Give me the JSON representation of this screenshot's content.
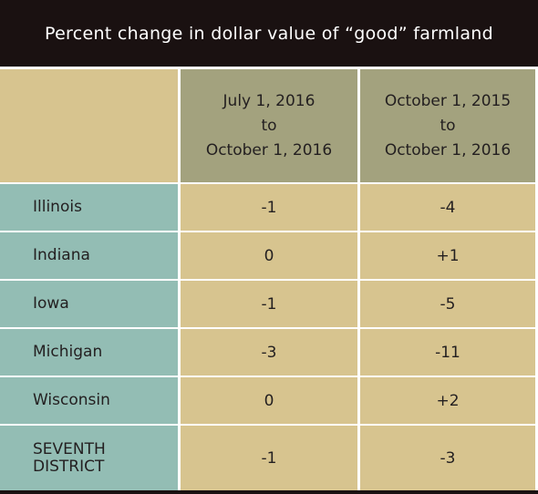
{
  "title": "Percent change in dollar value of “good” farmland",
  "columns": [
    "July 1, 2016\nto\nOctober 1, 2016",
    "October 1, 2015\nto\nOctober 1, 2016"
  ],
  "rows": [
    {
      "name": "Illinois",
      "values": [
        "-1",
        "-4"
      ]
    },
    {
      "name": "Indiana",
      "values": [
        "0",
        "+1"
      ]
    },
    {
      "name": "Iowa",
      "values": [
        "-1",
        "-5"
      ]
    },
    {
      "name": "Michigan",
      "values": [
        "-3",
        "-11"
      ]
    },
    {
      "name": "Wisconsin",
      "values": [
        "0",
        "+2"
      ]
    },
    {
      "name": "SEVENTH\nDISTRICT",
      "values": [
        "-1",
        "-3"
      ]
    }
  ],
  "colors": {
    "title_bg": "#1a1111",
    "header_bg": "#a3a27e",
    "state_bg": "#93bdb4",
    "value_bg": "#d7c48f"
  }
}
